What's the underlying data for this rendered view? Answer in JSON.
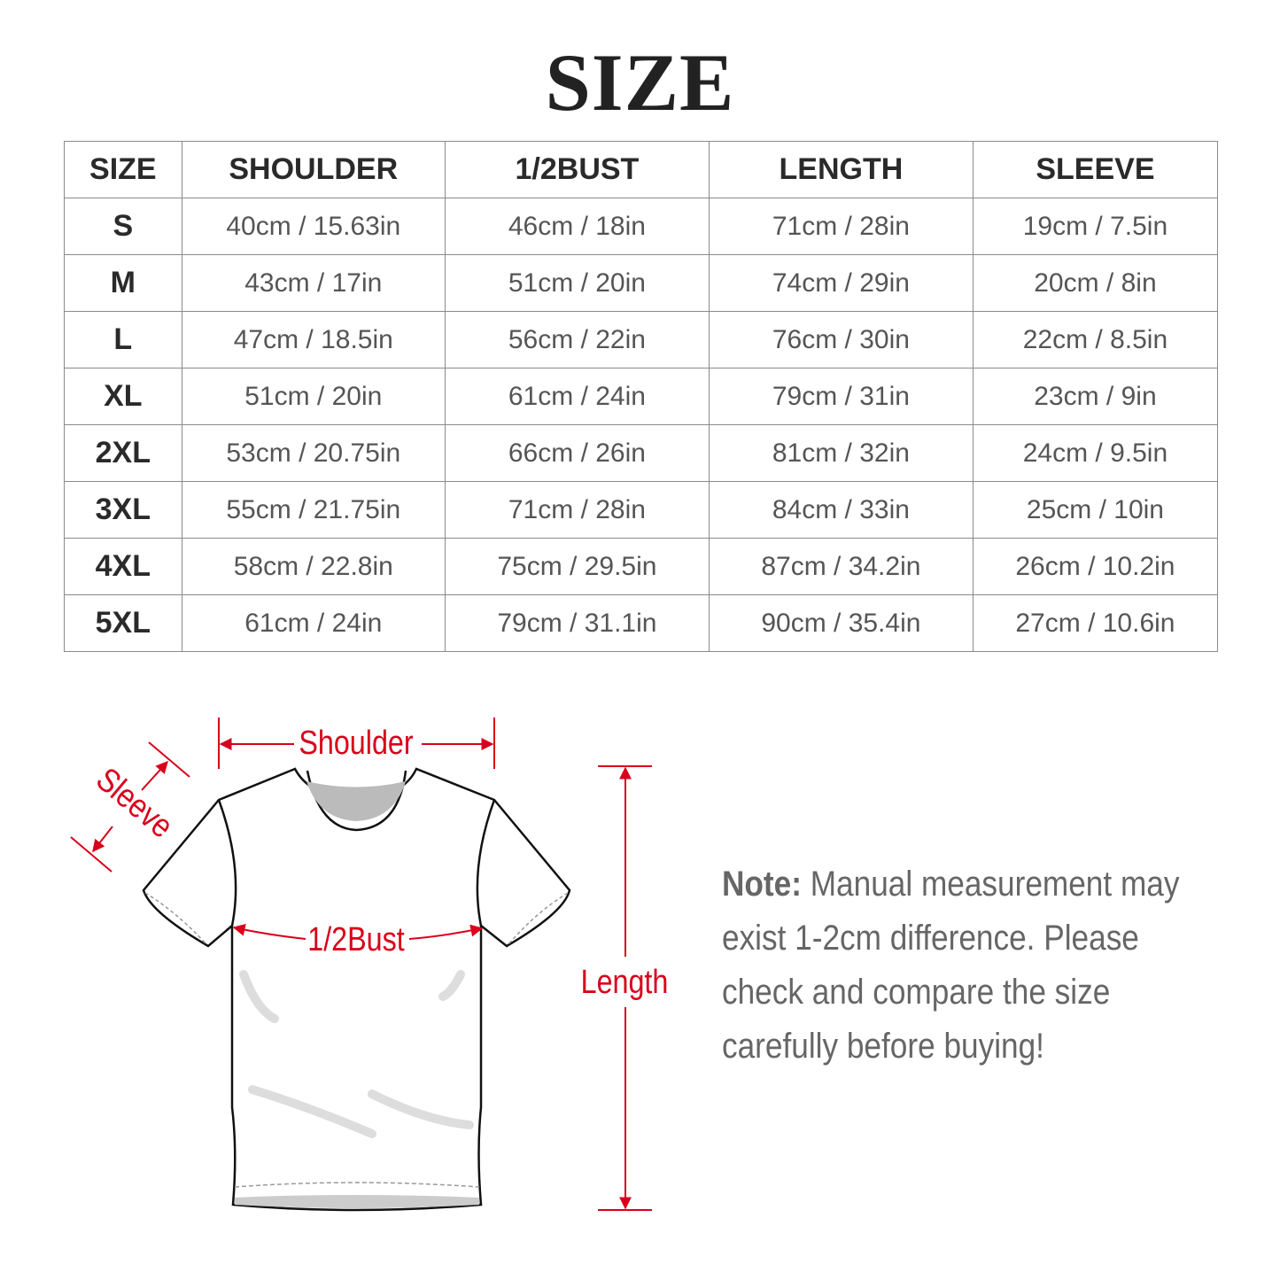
{
  "title": "SIZE",
  "table": {
    "headers": [
      "SIZE",
      "SHOULDER",
      "1/2BUST",
      "LENGTH",
      "SLEEVE"
    ],
    "rows": [
      [
        "S",
        "40cm / 15.63in",
        "46cm / 18in",
        "71cm / 28in",
        "19cm / 7.5in"
      ],
      [
        "M",
        "43cm / 17in",
        "51cm / 20in",
        "74cm / 29in",
        "20cm / 8in"
      ],
      [
        "L",
        "47cm / 18.5in",
        "56cm / 22in",
        "76cm / 30in",
        "22cm / 8.5in"
      ],
      [
        "XL",
        "51cm / 20in",
        "61cm / 24in",
        "79cm / 31in",
        "23cm / 9in"
      ],
      [
        "2XL",
        "53cm / 20.75in",
        "66cm / 26in",
        "81cm / 32in",
        "24cm / 9.5in"
      ],
      [
        "3XL",
        "55cm / 21.75in",
        "71cm / 28in",
        "84cm / 33in",
        "25cm / 10in"
      ],
      [
        "4XL",
        "58cm / 22.8in",
        "75cm / 29.5in",
        "87cm / 34.2in",
        "26cm / 10.2in"
      ],
      [
        "5XL",
        "61cm / 24in",
        "79cm / 31.1in",
        "90cm / 35.4in",
        "27cm / 10.6in"
      ]
    ]
  },
  "diagram": {
    "shoulder": "Shoulder",
    "sleeve": "Sleeve",
    "bust": "1/2Bust",
    "length": "Length",
    "accent_color": "#d9001b"
  },
  "note": {
    "label": "Note:",
    "line1": " Manual measurement may",
    "line2": "exist 1-2cm difference. Please",
    "line3": "check and compare the size",
    "line4": "carefully before buying!"
  }
}
